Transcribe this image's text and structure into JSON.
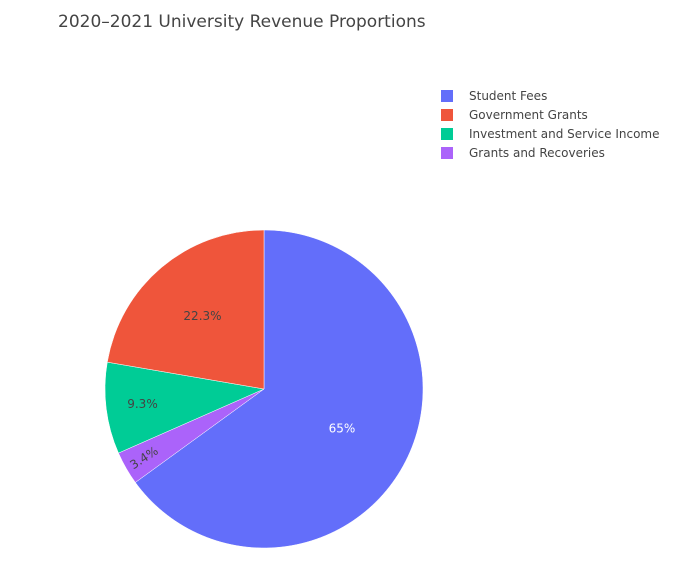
{
  "chart_data": {
    "type": "pie",
    "title": "2020–2021 University Revenue Proportions",
    "direction": "clockwise",
    "legend_position": "top-right",
    "slices": [
      {
        "label": "Student Fees",
        "value": 65,
        "text": "65%",
        "color": "#636efa",
        "text_color": "#ffffff"
      },
      {
        "label": "Grants and Recoveries",
        "value": 3.4,
        "text": "3.4%",
        "color": "#ab63fa",
        "text_color": "#444444"
      },
      {
        "label": "Investment and Service Income",
        "value": 9.3,
        "text": "9.3%",
        "color": "#00cc96",
        "text_color": "#444444"
      },
      {
        "label": "Government Grants",
        "value": 22.3,
        "text": "22.3%",
        "color": "#ef553b",
        "text_color": "#444444"
      }
    ],
    "legend": [
      {
        "label": "Student Fees",
        "color": "#636efa"
      },
      {
        "label": "Government Grants",
        "color": "#ef553b"
      },
      {
        "label": "Investment and Service Income",
        "color": "#00cc96"
      },
      {
        "label": "Grants and Recoveries",
        "color": "#ab63fa"
      }
    ]
  }
}
